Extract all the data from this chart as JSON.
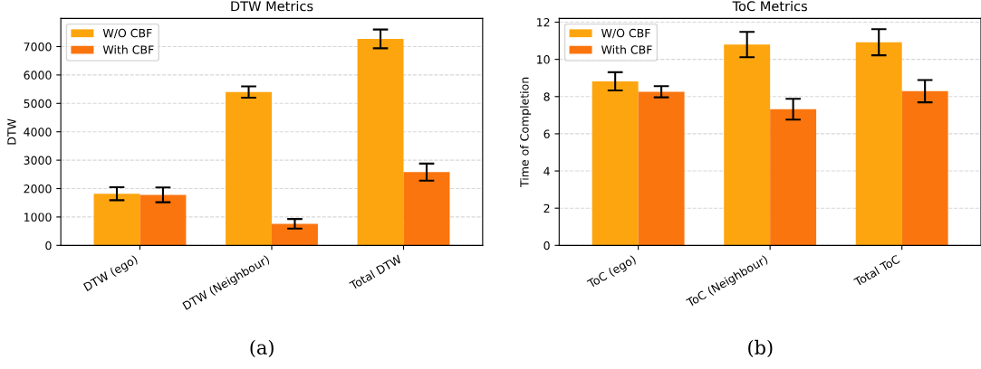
{
  "chart_data": [
    {
      "type": "bar",
      "title": "DTW Metrics",
      "ylabel": "DTW",
      "categories": [
        "DTW (ego)",
        "DTW (Neighbour)",
        "Total DTW"
      ],
      "series": [
        {
          "name": "W/O CBF",
          "color": "#fda50f",
          "values": [
            1820,
            5400,
            7270
          ],
          "errors": [
            230,
            200,
            330
          ]
        },
        {
          "name": "With CBF",
          "color": "#fb750f",
          "values": [
            1780,
            760,
            2580
          ],
          "errors": [
            260,
            170,
            300
          ]
        }
      ],
      "ylim": [
        0,
        7990
      ],
      "yticks": [
        0,
        1000,
        2000,
        3000,
        4000,
        5000,
        6000,
        7000
      ],
      "grid": "y",
      "legend": "top left",
      "annotations": [
        "(a)"
      ]
    },
    {
      "type": "bar",
      "title": "ToC Metrics",
      "ylabel": "Time of Completion",
      "categories": [
        "ToC (ego)",
        "ToC (Neighbour)",
        "Total ToC"
      ],
      "series": [
        {
          "name": "W/O CBF",
          "color": "#fda50f",
          "values": [
            8.82,
            10.8,
            10.92
          ],
          "errors": [
            0.49,
            0.68,
            0.7
          ]
        },
        {
          "name": "With CBF",
          "color": "#fb750f",
          "values": [
            8.26,
            7.32,
            8.29
          ],
          "errors": [
            0.3,
            0.56,
            0.6
          ]
        }
      ],
      "ylim": [
        0,
        12.2
      ],
      "yticks": [
        0,
        2,
        4,
        6,
        8,
        10,
        12
      ],
      "grid": "y",
      "legend": "top left",
      "annotations": [
        "(b)"
      ]
    }
  ]
}
